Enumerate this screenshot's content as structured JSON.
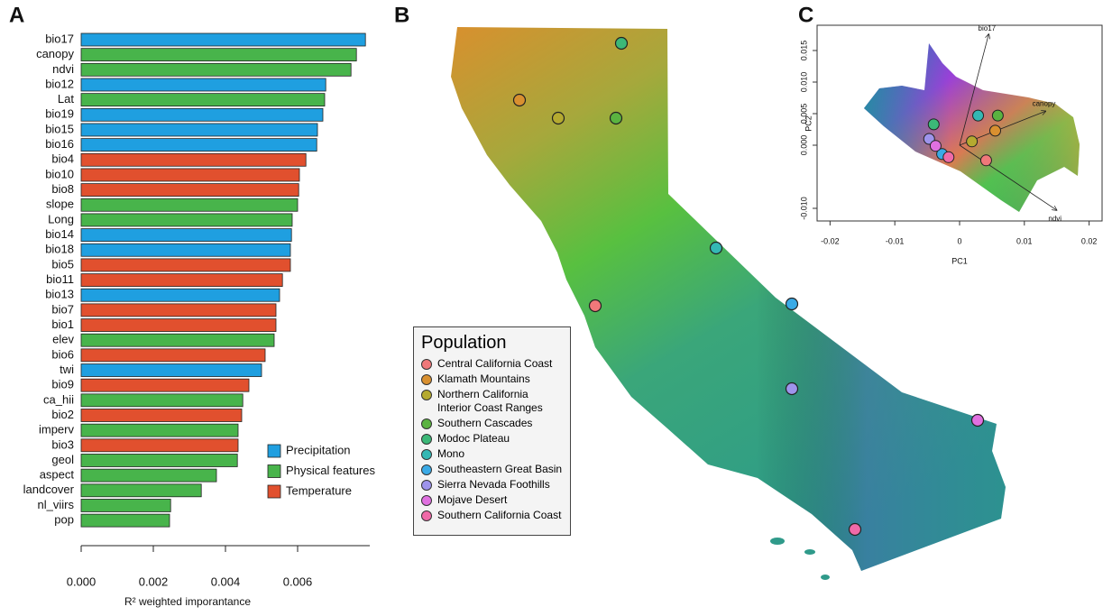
{
  "chart_data": [
    {
      "type": "bar",
      "panel_label": "A",
      "xlabel": "R² weighted imporantance",
      "categories": [
        "bio17",
        "canopy",
        "ndvi",
        "bio12",
        "Lat",
        "bio19",
        "bio15",
        "bio16",
        "bio4",
        "bio10",
        "bio8",
        "slope",
        "Long",
        "bio14",
        "bio18",
        "bio5",
        "bio11",
        "bio13",
        "bio7",
        "bio1",
        "elev",
        "bio6",
        "twi",
        "bio9",
        "ca_hii",
        "bio2",
        "imperv",
        "bio3",
        "geol",
        "aspect",
        "landcover",
        "nl_viirs",
        "pop"
      ],
      "series": [
        {
          "name": "Precipitation",
          "color": "#1f9fe0",
          "values": [
            0.00788,
            null,
            null,
            0.00678,
            null,
            0.0067,
            0.00655,
            0.00653,
            null,
            null,
            null,
            null,
            null,
            0.00583,
            0.0058,
            null,
            null,
            0.0055,
            null,
            null,
            null,
            null,
            0.005,
            null,
            null,
            null,
            null,
            null,
            null,
            null,
            null,
            null,
            null
          ]
        },
        {
          "name": "Physical features",
          "color": "#48b44b",
          "values": [
            null,
            0.00763,
            0.00748,
            null,
            0.00675,
            null,
            null,
            null,
            null,
            null,
            null,
            0.006,
            0.00585,
            null,
            null,
            null,
            null,
            null,
            null,
            null,
            0.00535,
            null,
            null,
            null,
            0.00448,
            null,
            0.00435,
            null,
            0.00433,
            0.00375,
            0.00333,
            0.00248,
            0.00245
          ]
        },
        {
          "name": "Temperature",
          "color": "#e1502e",
          "values": [
            null,
            null,
            null,
            null,
            null,
            null,
            null,
            null,
            0.00623,
            0.00605,
            0.00603,
            null,
            null,
            null,
            null,
            0.0058,
            0.00558,
            null,
            0.0054,
            0.0054,
            null,
            0.0051,
            null,
            0.00465,
            null,
            0.00445,
            null,
            0.00435,
            null,
            null,
            null,
            null,
            null
          ]
        }
      ],
      "xlim": [
        0,
        0.008
      ],
      "xticks": [
        {
          "value": 0,
          "label": "0.000"
        },
        {
          "value": 0.002,
          "label": "0.002"
        },
        {
          "value": 0.004,
          "label": "0.004"
        },
        {
          "value": 0.006,
          "label": "0.006"
        }
      ]
    },
    {
      "type": "scatter",
      "panel_label": "C",
      "xlabel": "PC1",
      "ylabel": "PC2",
      "legend_title": "Population",
      "series": [
        {
          "name": "Central California Coast",
          "color": "#f0787a",
          "x": [
            0.0041
          ],
          "values": [
            -0.0024
          ]
        },
        {
          "name": "Klamath Mountains",
          "color": "#d99030",
          "x": [
            0.0055
          ],
          "values": [
            0.0023
          ]
        },
        {
          "name": "Northern California Interior Coast Ranges",
          "color": "#b5aa30",
          "x": [
            0.0019
          ],
          "values": [
            0.0006
          ]
        },
        {
          "name": "Southern Cascades",
          "color": "#5ab340",
          "x": [
            0.0059
          ],
          "values": [
            0.0047
          ]
        },
        {
          "name": "Modoc Plateau",
          "color": "#3cb878",
          "x": [
            -0.004
          ],
          "values": [
            0.0033
          ]
        },
        {
          "name": "Mono",
          "color": "#34b8b4",
          "x": [
            0.00286
          ],
          "values": [
            0.0047
          ]
        },
        {
          "name": "Southeastern Great Basin",
          "color": "#3aaae6",
          "x": [
            -0.0027
          ],
          "values": [
            -0.0014
          ]
        },
        {
          "name": "Sierra Nevada Foothills",
          "color": "#9e94ec",
          "x": [
            -0.0047
          ],
          "values": [
            0.001
          ]
        },
        {
          "name": "Mojave Desert",
          "color": "#e070e0",
          "x": [
            -0.0037
          ],
          "values": [
            -0.0001
          ]
        },
        {
          "name": "Southern California Coast",
          "color": "#f06aa8",
          "x": [
            -0.0017
          ],
          "values": [
            -0.0019
          ]
        }
      ],
      "arrows": [
        {
          "name": "bio17",
          "x": 0.0045,
          "y": 0.0176
        },
        {
          "name": "canopy",
          "x": 0.0133,
          "y": 0.0054
        },
        {
          "name": "ndvi",
          "x": 0.015,
          "y": -0.0103
        }
      ],
      "xlim": [
        -0.022,
        0.022
      ],
      "ylim": [
        -0.012,
        0.019
      ],
      "xticks": [
        -0.02,
        -0.01,
        0,
        0.01,
        0.02
      ],
      "yticks": [
        {
          "value": -0.01,
          "label": "-0.010"
        },
        {
          "value": 0,
          "label": "0.000"
        },
        {
          "value": 0.005,
          "label": "0.005"
        },
        {
          "value": 0.01,
          "label": "0.010"
        },
        {
          "value": 0.015,
          "label": "0.015"
        }
      ]
    }
  ],
  "map": {
    "panel_label": "B"
  }
}
